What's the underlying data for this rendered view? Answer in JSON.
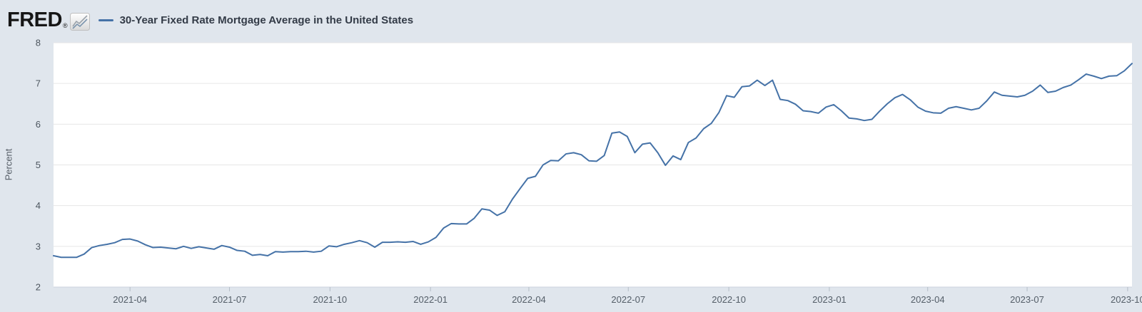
{
  "header": {
    "logo_text": "FRED",
    "logo_registered": "®"
  },
  "chart_data": {
    "type": "line",
    "title": "30-Year Fixed Rate Mortgage Average in the United States",
    "ylabel": "Percent",
    "ylim": [
      2,
      8
    ],
    "y_ticks": [
      2,
      3,
      4,
      5,
      6,
      7,
      8
    ],
    "x_range": [
      "2021-01-21",
      "2023-10-05"
    ],
    "frequency": "weekly",
    "x_tick_labels": [
      "2021-04",
      "2021-07",
      "2021-10",
      "2022-01",
      "2022-04",
      "2022-07",
      "2022-10",
      "2023-01",
      "2023-04",
      "2023-07",
      "2023-10"
    ],
    "grid": true,
    "legend_position": "top",
    "line_color": "#4572a7",
    "plot_bg": "#ffffff",
    "canvas_bg": "#e0e6ed",
    "values": [
      2.77,
      2.73,
      2.73,
      2.73,
      2.81,
      2.97,
      3.02,
      3.05,
      3.09,
      3.17,
      3.18,
      3.13,
      3.04,
      2.97,
      2.98,
      2.96,
      2.94,
      3.0,
      2.95,
      2.99,
      2.96,
      2.93,
      3.02,
      2.98,
      2.9,
      2.88,
      2.78,
      2.8,
      2.77,
      2.87,
      2.86,
      2.87,
      2.87,
      2.88,
      2.86,
      2.88,
      3.01,
      2.99,
      3.05,
      3.09,
      3.14,
      3.09,
      2.98,
      3.1,
      3.1,
      3.11,
      3.1,
      3.12,
      3.05,
      3.11,
      3.22,
      3.45,
      3.56,
      3.55,
      3.55,
      3.69,
      3.92,
      3.89,
      3.76,
      3.85,
      4.16,
      4.42,
      4.67,
      4.72,
      5.0,
      5.11,
      5.1,
      5.27,
      5.3,
      5.25,
      5.1,
      5.09,
      5.23,
      5.78,
      5.81,
      5.7,
      5.3,
      5.51,
      5.54,
      5.3,
      4.99,
      5.22,
      5.13,
      5.55,
      5.66,
      5.89,
      6.02,
      6.29,
      6.7,
      6.66,
      6.92,
      6.94,
      7.08,
      6.95,
      7.08,
      6.61,
      6.58,
      6.49,
      6.33,
      6.31,
      6.27,
      6.42,
      6.48,
      6.33,
      6.15,
      6.13,
      6.09,
      6.12,
      6.32,
      6.5,
      6.65,
      6.73,
      6.6,
      6.42,
      6.32,
      6.28,
      6.27,
      6.39,
      6.43,
      6.39,
      6.35,
      6.39,
      6.57,
      6.79,
      6.71,
      6.69,
      6.67,
      6.71,
      6.81,
      6.96,
      6.78,
      6.81,
      6.9,
      6.96,
      7.09,
      7.23,
      7.18,
      7.12,
      7.18,
      7.19,
      7.31,
      7.49
    ]
  }
}
